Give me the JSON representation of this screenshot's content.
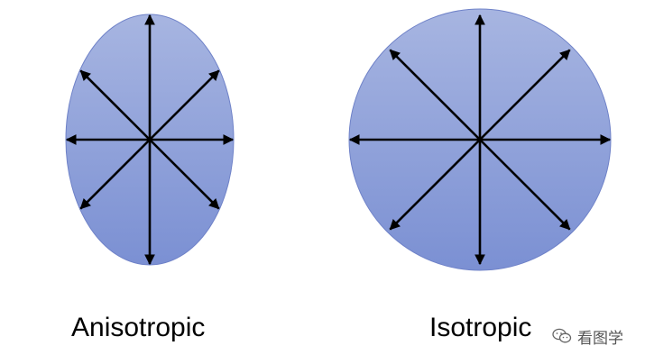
{
  "shapes": {
    "fill_top": "#a7b5e1",
    "fill_bottom": "#7b90d3",
    "outline": "#6f82c8",
    "arrow_color": "#000000",
    "arrow_directions": [
      "up",
      "up-right",
      "right",
      "down-right",
      "down",
      "down-left",
      "left",
      "up-left"
    ]
  },
  "labels": {
    "anisotropic": "Anisotropic",
    "isotropic": "Isotropic"
  },
  "watermark": {
    "icon": "wechat-icon",
    "text": "看图学"
  }
}
